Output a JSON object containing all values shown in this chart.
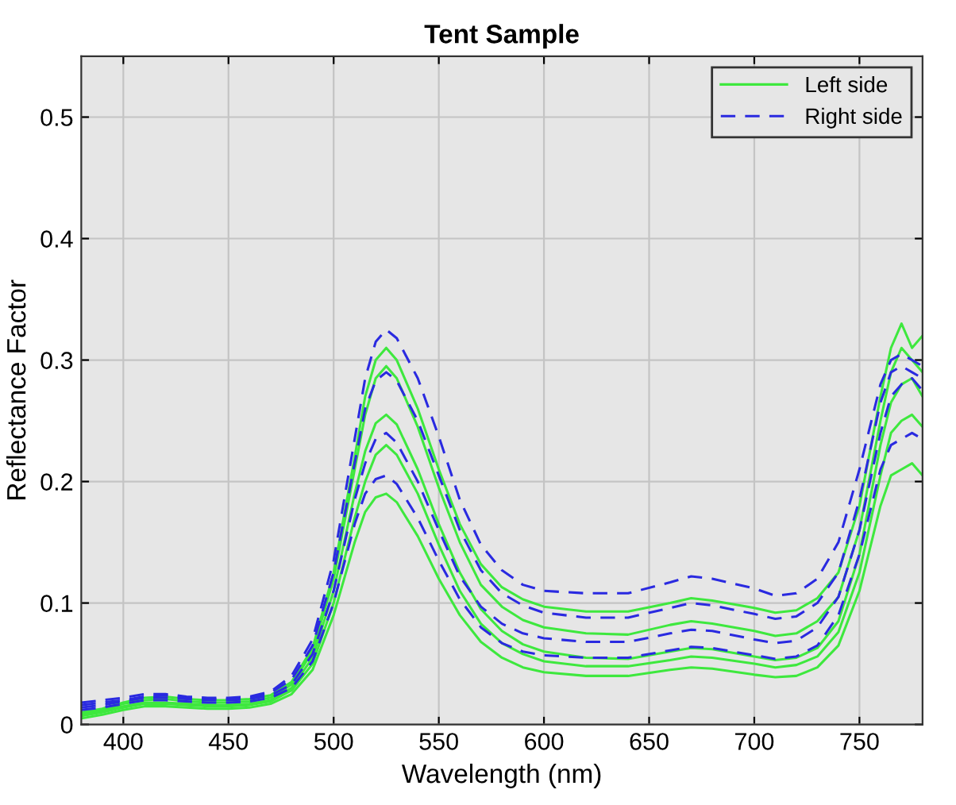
{
  "chart_data": {
    "type": "line",
    "title": "Tent Sample",
    "xlabel": "Wavelength (nm)",
    "ylabel": "Reflectance Factor",
    "x": [
      380,
      390,
      400,
      410,
      420,
      430,
      440,
      450,
      460,
      470,
      480,
      490,
      500,
      510,
      515,
      520,
      525,
      530,
      540,
      550,
      560,
      570,
      580,
      590,
      600,
      620,
      640,
      660,
      670,
      680,
      700,
      710,
      720,
      730,
      740,
      750,
      760,
      765,
      770,
      775,
      780
    ],
    "series": [
      {
        "color": "#3ee83e",
        "line_style": "solid",
        "values": [
          0.005,
          0.008,
          0.012,
          0.015,
          0.015,
          0.014,
          0.013,
          0.013,
          0.014,
          0.017,
          0.025,
          0.045,
          0.09,
          0.15,
          0.175,
          0.187,
          0.19,
          0.183,
          0.155,
          0.12,
          0.09,
          0.068,
          0.055,
          0.047,
          0.043,
          0.04,
          0.04,
          0.045,
          0.047,
          0.046,
          0.041,
          0.039,
          0.04,
          0.047,
          0.065,
          0.11,
          0.18,
          0.205,
          0.21,
          0.215,
          0.205
        ]
      },
      {
        "color": "#3ee83e",
        "line_style": "solid",
        "values": [
          0.008,
          0.011,
          0.015,
          0.018,
          0.018,
          0.017,
          0.016,
          0.016,
          0.017,
          0.02,
          0.03,
          0.055,
          0.11,
          0.19,
          0.225,
          0.248,
          0.255,
          0.247,
          0.21,
          0.165,
          0.125,
          0.095,
          0.077,
          0.066,
          0.06,
          0.055,
          0.054,
          0.06,
          0.063,
          0.062,
          0.056,
          0.053,
          0.055,
          0.063,
          0.085,
          0.14,
          0.23,
          0.265,
          0.28,
          0.285,
          0.27
        ]
      },
      {
        "color": "#3ee83e",
        "line_style": "solid",
        "values": [
          0.009,
          0.012,
          0.017,
          0.02,
          0.021,
          0.019,
          0.018,
          0.018,
          0.019,
          0.022,
          0.033,
          0.06,
          0.12,
          0.21,
          0.255,
          0.285,
          0.295,
          0.285,
          0.245,
          0.195,
          0.15,
          0.115,
          0.097,
          0.086,
          0.08,
          0.075,
          0.074,
          0.082,
          0.085,
          0.083,
          0.077,
          0.073,
          0.075,
          0.085,
          0.105,
          0.16,
          0.25,
          0.29,
          0.31,
          0.3,
          0.29
        ]
      },
      {
        "color": "#3ee83e",
        "line_style": "solid",
        "values": [
          0.01,
          0.013,
          0.018,
          0.022,
          0.023,
          0.021,
          0.02,
          0.02,
          0.021,
          0.024,
          0.035,
          0.063,
          0.125,
          0.22,
          0.27,
          0.3,
          0.31,
          0.3,
          0.26,
          0.21,
          0.165,
          0.132,
          0.113,
          0.103,
          0.097,
          0.093,
          0.093,
          0.1,
          0.104,
          0.102,
          0.096,
          0.092,
          0.094,
          0.104,
          0.125,
          0.18,
          0.27,
          0.31,
          0.33,
          0.31,
          0.32
        ]
      },
      {
        "name": "Left side",
        "color": "#3ee83e",
        "line_style": "solid",
        "values": [
          0.007,
          0.01,
          0.014,
          0.017,
          0.017,
          0.016,
          0.015,
          0.015,
          0.016,
          0.019,
          0.028,
          0.05,
          0.1,
          0.17,
          0.2,
          0.222,
          0.23,
          0.222,
          0.19,
          0.148,
          0.11,
          0.083,
          0.067,
          0.058,
          0.052,
          0.048,
          0.048,
          0.053,
          0.056,
          0.055,
          0.05,
          0.047,
          0.049,
          0.056,
          0.076,
          0.125,
          0.205,
          0.24,
          0.25,
          0.255,
          0.245
        ]
      },
      {
        "color": "#2a2ae0",
        "line_style": "dashed",
        "values": [
          0.012,
          0.014,
          0.017,
          0.02,
          0.02,
          0.019,
          0.018,
          0.018,
          0.019,
          0.022,
          0.03,
          0.052,
          0.1,
          0.165,
          0.19,
          0.202,
          0.205,
          0.198,
          0.17,
          0.135,
          0.103,
          0.08,
          0.067,
          0.06,
          0.057,
          0.055,
          0.055,
          0.061,
          0.064,
          0.063,
          0.057,
          0.054,
          0.056,
          0.065,
          0.09,
          0.14,
          0.21,
          0.23,
          0.235,
          0.24,
          0.235
        ]
      },
      {
        "color": "#2a2ae0",
        "line_style": "dashed",
        "values": [
          0.014,
          0.016,
          0.019,
          0.022,
          0.022,
          0.021,
          0.02,
          0.02,
          0.021,
          0.024,
          0.033,
          0.058,
          0.11,
          0.185,
          0.215,
          0.235,
          0.24,
          0.232,
          0.2,
          0.16,
          0.122,
          0.097,
          0.083,
          0.075,
          0.071,
          0.068,
          0.068,
          0.075,
          0.078,
          0.077,
          0.07,
          0.067,
          0.069,
          0.08,
          0.105,
          0.16,
          0.24,
          0.27,
          0.28,
          0.285,
          0.275
        ]
      },
      {
        "color": "#2a2ae0",
        "line_style": "dashed",
        "values": [
          0.016,
          0.018,
          0.02,
          0.023,
          0.024,
          0.022,
          0.021,
          0.021,
          0.022,
          0.026,
          0.037,
          0.065,
          0.125,
          0.215,
          0.26,
          0.283,
          0.29,
          0.283,
          0.25,
          0.205,
          0.16,
          0.127,
          0.108,
          0.098,
          0.092,
          0.088,
          0.088,
          0.096,
          0.1,
          0.098,
          0.091,
          0.087,
          0.089,
          0.1,
          0.125,
          0.185,
          0.265,
          0.29,
          0.295,
          0.29,
          0.285
        ]
      },
      {
        "name": "Right side",
        "color": "#2a2ae0",
        "line_style": "dashed",
        "values": [
          0.018,
          0.02,
          0.022,
          0.025,
          0.025,
          0.023,
          0.022,
          0.022,
          0.023,
          0.027,
          0.04,
          0.07,
          0.135,
          0.235,
          0.285,
          0.315,
          0.325,
          0.318,
          0.285,
          0.237,
          0.185,
          0.148,
          0.127,
          0.115,
          0.11,
          0.108,
          0.108,
          0.117,
          0.122,
          0.12,
          0.112,
          0.106,
          0.108,
          0.12,
          0.15,
          0.21,
          0.28,
          0.3,
          0.305,
          0.3,
          0.295
        ]
      }
    ],
    "xlim": [
      380,
      780
    ],
    "ylim": [
      0,
      0.55
    ],
    "xticks": [
      400,
      450,
      500,
      550,
      600,
      650,
      700,
      750
    ],
    "yticks": [
      0,
      0.1,
      0.2,
      0.3,
      0.4,
      0.5
    ],
    "grid": true,
    "legend": "top right"
  }
}
